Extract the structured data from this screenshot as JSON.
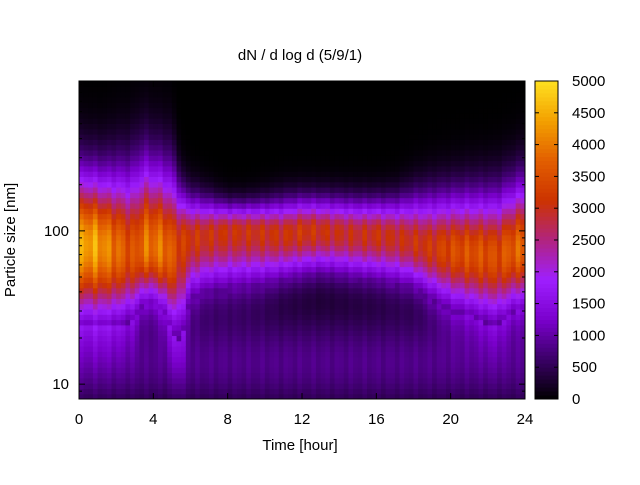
{
  "chart_data": {
    "type": "heatmap",
    "title": "dN / d log d (5/9/1)",
    "xlabel": "Time [hour]",
    "ylabel": "Particle size [nm]",
    "x_range": [
      0,
      24
    ],
    "x_ticks": [
      0,
      4,
      8,
      12,
      16,
      20,
      24
    ],
    "y_scale": "log",
    "y_range": [
      8,
      950
    ],
    "y_tick_labels": [
      {
        "value": 10,
        "label": "10"
      },
      {
        "value": 100,
        "label": "100"
      }
    ],
    "colorbar": {
      "range": [
        0,
        5000
      ],
      "ticks": [
        0,
        500,
        1000,
        1500,
        2000,
        2500,
        3000,
        3500,
        4000,
        4500,
        5000
      ],
      "colormap": [
        "#000000",
        "#3a0066",
        "#7a00cc",
        "#9e1fff",
        "#b1247f",
        "#cc3300",
        "#e25e00",
        "#f3a000",
        "#ffe020"
      ]
    },
    "hour_samples": [
      0,
      0.5,
      1,
      1.5,
      2,
      2.5,
      3,
      3.5,
      4,
      4.5,
      5,
      5.5,
      6,
      7,
      8,
      9,
      10,
      11,
      12,
      13,
      14,
      15,
      16,
      17,
      18,
      19,
      20,
      21,
      22,
      22.5,
      23,
      23.5,
      24
    ],
    "mode_diameter_nm": [
      80,
      82,
      80,
      78,
      75,
      74,
      72,
      78,
      78,
      75,
      70,
      85,
      90,
      95,
      100,
      100,
      98,
      95,
      100,
      100,
      98,
      95,
      95,
      92,
      85,
      78,
      75,
      72,
      70,
      68,
      72,
      75,
      78
    ],
    "peak_concentration": [
      4600,
      4800,
      4700,
      4400,
      4200,
      3900,
      3700,
      4300,
      4200,
      4300,
      3900,
      3500,
      3400,
      3300,
      3300,
      3300,
      3300,
      3300,
      3400,
      3300,
      3200,
      3200,
      3300,
      3200,
      3300,
      3400,
      3700,
      3800,
      3800,
      3700,
      3900,
      4000,
      4100
    ],
    "lower_edge_nm": [
      25,
      25,
      24,
      24,
      24,
      25,
      26,
      34,
      33,
      30,
      22,
      18,
      35,
      40,
      41,
      42,
      44,
      47,
      50,
      52,
      50,
      48,
      47,
      44,
      42,
      35,
      30,
      28,
      25,
      24,
      27,
      30,
      30
    ],
    "upper_edge_nm": [
      200,
      200,
      195,
      195,
      200,
      200,
      210,
      230,
      220,
      210,
      200,
      160,
      150,
      145,
      140,
      140,
      142,
      145,
      150,
      150,
      148,
      145,
      145,
      145,
      150,
      150,
      150,
      150,
      150,
      150,
      160,
      170,
      180
    ]
  }
}
